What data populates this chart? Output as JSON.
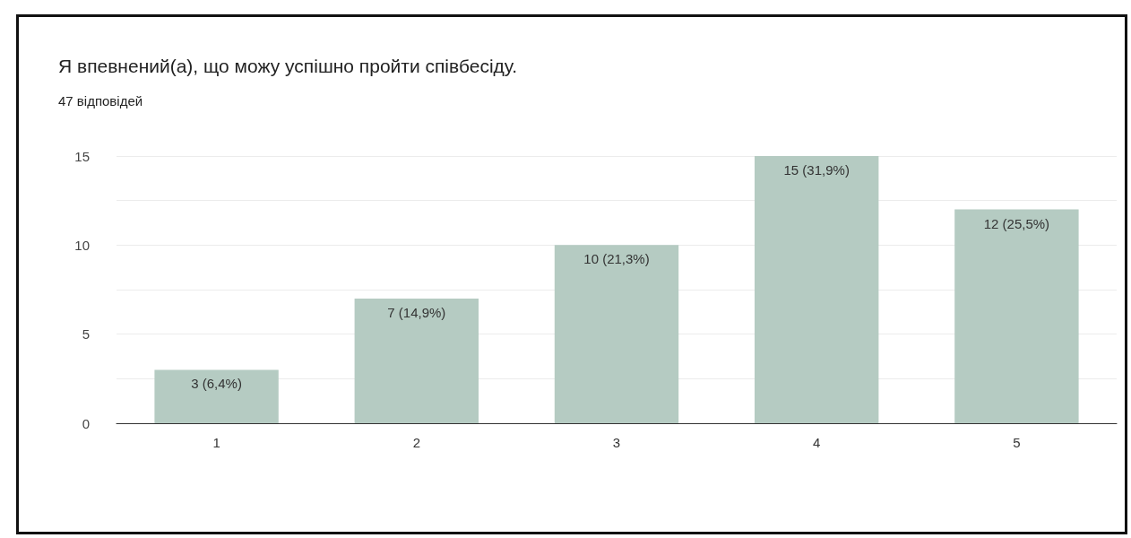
{
  "chart_data": {
    "type": "bar",
    "title": "Я впевнений(а), що можу успішно пройти співбесіду.",
    "subtitle": "47 відповідей",
    "categories": [
      "1",
      "2",
      "3",
      "4",
      "5"
    ],
    "values": [
      3,
      7,
      10,
      15,
      12
    ],
    "value_labels": [
      "3 (6,4%)",
      "7 (14,9%)",
      "10 (21,3%)",
      "15 (31,9%)",
      "12 (25,5%)"
    ],
    "color": "#b5cbc2",
    "ylim": [
      0,
      15
    ],
    "yticks": [
      0,
      {
        "value": 2.5,
        "label": null
      },
      5,
      {
        "value": 7.5,
        "label": null
      },
      10,
      {
        "value": 12.5,
        "label": null
      },
      15
    ],
    "grid": "y"
  }
}
